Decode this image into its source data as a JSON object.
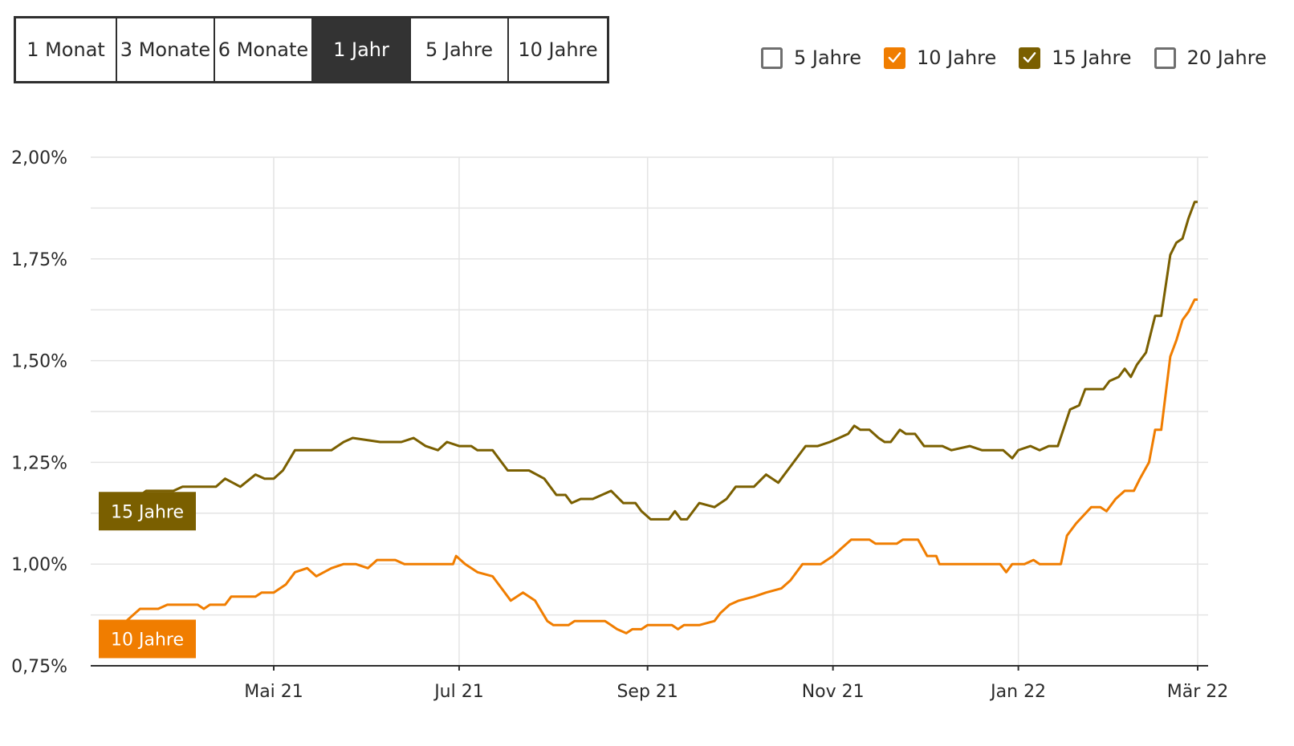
{
  "range_tabs": {
    "items": [
      {
        "label": "1 Monat",
        "active": false
      },
      {
        "label": "3 Monate",
        "active": false
      },
      {
        "label": "6 Monate",
        "active": false
      },
      {
        "label": "1 Jahr",
        "active": true
      },
      {
        "label": "5 Jahre",
        "active": false
      },
      {
        "label": "10 Jahre",
        "active": false
      }
    ]
  },
  "legend": {
    "items": [
      {
        "label": "5 Jahre",
        "checked": false,
        "color": "#6f6f6f"
      },
      {
        "label": "10 Jahre",
        "checked": true,
        "color": "#f07d00"
      },
      {
        "label": "15 Jahre",
        "checked": true,
        "color": "#7a5f00"
      },
      {
        "label": "20 Jahre",
        "checked": false,
        "color": "#6f6f6f"
      }
    ]
  },
  "chart_data": {
    "type": "line",
    "title": "",
    "xlabel": "",
    "ylabel": "",
    "ylim": [
      0.75,
      2.0
    ],
    "xlim": [
      "2021-03-10",
      "2022-03-07"
    ],
    "grid": true,
    "y_ticks": [
      0.75,
      1.0,
      1.25,
      1.5,
      1.75,
      2.0
    ],
    "y_tick_labels": [
      "0,75%",
      "1,00%",
      "1,25%",
      "1,50%",
      "1,75%",
      "2,00%"
    ],
    "x_ticks": [
      {
        "date": "2021-05-01",
        "label": "Mai 21"
      },
      {
        "date": "2021-07-01",
        "label": "Jul 21"
      },
      {
        "date": "2021-09-01",
        "label": "Sep 21"
      },
      {
        "date": "2021-11-01",
        "label": "Nov 21"
      },
      {
        "date": "2022-01-01",
        "label": "Jan 22"
      },
      {
        "date": "2022-03-01",
        "label": "Mär 22"
      }
    ],
    "series": [
      {
        "name": "15 Jahre",
        "color": "#7a5f00",
        "points": [
          [
            "2021-03-10",
            1.13
          ],
          [
            "2021-03-13",
            1.14
          ],
          [
            "2021-03-20",
            1.18
          ],
          [
            "2021-03-29",
            1.18
          ],
          [
            "2021-04-01",
            1.19
          ],
          [
            "2021-04-12",
            1.19
          ],
          [
            "2021-04-15",
            1.21
          ],
          [
            "2021-04-20",
            1.19
          ],
          [
            "2021-04-25",
            1.22
          ],
          [
            "2021-04-28",
            1.21
          ],
          [
            "2021-05-01",
            1.21
          ],
          [
            "2021-05-04",
            1.23
          ],
          [
            "2021-05-08",
            1.28
          ],
          [
            "2021-05-20",
            1.28
          ],
          [
            "2021-05-24",
            1.3
          ],
          [
            "2021-05-27",
            1.31
          ],
          [
            "2021-06-05",
            1.3
          ],
          [
            "2021-06-12",
            1.3
          ],
          [
            "2021-06-16",
            1.31
          ],
          [
            "2021-06-20",
            1.29
          ],
          [
            "2021-06-24",
            1.28
          ],
          [
            "2021-06-27",
            1.3
          ],
          [
            "2021-07-01",
            1.29
          ],
          [
            "2021-07-05",
            1.29
          ],
          [
            "2021-07-07",
            1.28
          ],
          [
            "2021-07-12",
            1.28
          ],
          [
            "2021-07-17",
            1.23
          ],
          [
            "2021-07-24",
            1.23
          ],
          [
            "2021-07-29",
            1.21
          ],
          [
            "2021-08-02",
            1.17
          ],
          [
            "2021-08-05",
            1.17
          ],
          [
            "2021-08-07",
            1.15
          ],
          [
            "2021-08-10",
            1.16
          ],
          [
            "2021-08-14",
            1.16
          ],
          [
            "2021-08-20",
            1.18
          ],
          [
            "2021-08-24",
            1.15
          ],
          [
            "2021-08-28",
            1.15
          ],
          [
            "2021-08-30",
            1.13
          ],
          [
            "2021-09-02",
            1.11
          ],
          [
            "2021-09-08",
            1.11
          ],
          [
            "2021-09-10",
            1.13
          ],
          [
            "2021-09-12",
            1.11
          ],
          [
            "2021-09-14",
            1.11
          ],
          [
            "2021-09-18",
            1.15
          ],
          [
            "2021-09-23",
            1.14
          ],
          [
            "2021-09-27",
            1.16
          ],
          [
            "2021-09-30",
            1.19
          ],
          [
            "2021-10-06",
            1.19
          ],
          [
            "2021-10-10",
            1.22
          ],
          [
            "2021-10-14",
            1.2
          ],
          [
            "2021-10-18",
            1.24
          ],
          [
            "2021-10-23",
            1.29
          ],
          [
            "2021-10-27",
            1.29
          ],
          [
            "2021-10-31",
            1.3
          ],
          [
            "2021-11-03",
            1.31
          ],
          [
            "2021-11-06",
            1.32
          ],
          [
            "2021-11-08",
            1.34
          ],
          [
            "2021-11-10",
            1.33
          ],
          [
            "2021-11-13",
            1.33
          ],
          [
            "2021-11-16",
            1.31
          ],
          [
            "2021-11-18",
            1.3
          ],
          [
            "2021-11-20",
            1.3
          ],
          [
            "2021-11-23",
            1.33
          ],
          [
            "2021-11-25",
            1.32
          ],
          [
            "2021-11-28",
            1.32
          ],
          [
            "2021-12-01",
            1.29
          ],
          [
            "2021-12-07",
            1.29
          ],
          [
            "2021-12-10",
            1.28
          ],
          [
            "2021-12-16",
            1.29
          ],
          [
            "2021-12-20",
            1.28
          ],
          [
            "2021-12-27",
            1.28
          ],
          [
            "2021-12-30",
            1.26
          ],
          [
            "2022-01-01",
            1.28
          ],
          [
            "2022-01-05",
            1.29
          ],
          [
            "2022-01-08",
            1.28
          ],
          [
            "2022-01-11",
            1.29
          ],
          [
            "2022-01-14",
            1.29
          ],
          [
            "2022-01-18",
            1.38
          ],
          [
            "2022-01-21",
            1.39
          ],
          [
            "2022-01-23",
            1.43
          ],
          [
            "2022-01-29",
            1.43
          ],
          [
            "2022-01-31",
            1.45
          ],
          [
            "2022-02-03",
            1.46
          ],
          [
            "2022-02-05",
            1.48
          ],
          [
            "2022-02-07",
            1.46
          ],
          [
            "2022-02-09",
            1.49
          ],
          [
            "2022-02-12",
            1.52
          ],
          [
            "2022-02-15",
            1.61
          ],
          [
            "2022-02-17",
            1.61
          ],
          [
            "2022-02-20",
            1.76
          ],
          [
            "2022-02-22",
            1.79
          ],
          [
            "2022-02-24",
            1.8
          ],
          [
            "2022-02-26",
            1.85
          ],
          [
            "2022-02-28",
            1.89
          ],
          [
            "2022-03-01",
            1.89
          ]
        ]
      },
      {
        "name": "10 Jahre",
        "color": "#f07d00",
        "points": [
          [
            "2021-03-10",
            0.82
          ],
          [
            "2021-03-12",
            0.85
          ],
          [
            "2021-03-18",
            0.89
          ],
          [
            "2021-03-24",
            0.89
          ],
          [
            "2021-03-27",
            0.9
          ],
          [
            "2021-04-06",
            0.9
          ],
          [
            "2021-04-08",
            0.89
          ],
          [
            "2021-04-10",
            0.9
          ],
          [
            "2021-04-15",
            0.9
          ],
          [
            "2021-04-17",
            0.92
          ],
          [
            "2021-04-25",
            0.92
          ],
          [
            "2021-04-27",
            0.93
          ],
          [
            "2021-05-01",
            0.93
          ],
          [
            "2021-05-05",
            0.95
          ],
          [
            "2021-05-08",
            0.98
          ],
          [
            "2021-05-12",
            0.99
          ],
          [
            "2021-05-15",
            0.97
          ],
          [
            "2021-05-20",
            0.99
          ],
          [
            "2021-05-24",
            1.0
          ],
          [
            "2021-05-28",
            1.0
          ],
          [
            "2021-06-01",
            0.99
          ],
          [
            "2021-06-04",
            1.01
          ],
          [
            "2021-06-10",
            1.01
          ],
          [
            "2021-06-13",
            1.0
          ],
          [
            "2021-06-24",
            1.0
          ],
          [
            "2021-06-29",
            1.0
          ],
          [
            "2021-06-30",
            1.02
          ],
          [
            "2021-07-03",
            1.0
          ],
          [
            "2021-07-07",
            0.98
          ],
          [
            "2021-07-12",
            0.97
          ],
          [
            "2021-07-15",
            0.94
          ],
          [
            "2021-07-18",
            0.91
          ],
          [
            "2021-07-22",
            0.93
          ],
          [
            "2021-07-26",
            0.91
          ],
          [
            "2021-07-30",
            0.86
          ],
          [
            "2021-08-01",
            0.85
          ],
          [
            "2021-08-06",
            0.85
          ],
          [
            "2021-08-08",
            0.86
          ],
          [
            "2021-08-18",
            0.86
          ],
          [
            "2021-08-22",
            0.84
          ],
          [
            "2021-08-25",
            0.83
          ],
          [
            "2021-08-27",
            0.84
          ],
          [
            "2021-08-30",
            0.84
          ],
          [
            "2021-09-01",
            0.85
          ],
          [
            "2021-09-09",
            0.85
          ],
          [
            "2021-09-11",
            0.84
          ],
          [
            "2021-09-13",
            0.85
          ],
          [
            "2021-09-18",
            0.85
          ],
          [
            "2021-09-23",
            0.86
          ],
          [
            "2021-09-25",
            0.88
          ],
          [
            "2021-09-28",
            0.9
          ],
          [
            "2021-10-01",
            0.91
          ],
          [
            "2021-10-06",
            0.92
          ],
          [
            "2021-10-10",
            0.93
          ],
          [
            "2021-10-15",
            0.94
          ],
          [
            "2021-10-18",
            0.96
          ],
          [
            "2021-10-22",
            1.0
          ],
          [
            "2021-10-28",
            1.0
          ],
          [
            "2021-11-01",
            1.02
          ],
          [
            "2021-11-04",
            1.04
          ],
          [
            "2021-11-07",
            1.06
          ],
          [
            "2021-11-13",
            1.06
          ],
          [
            "2021-11-15",
            1.05
          ],
          [
            "2021-11-22",
            1.05
          ],
          [
            "2021-11-24",
            1.06
          ],
          [
            "2021-11-29",
            1.06
          ],
          [
            "2021-12-02",
            1.02
          ],
          [
            "2021-12-05",
            1.02
          ],
          [
            "2021-12-06",
            1.0
          ],
          [
            "2021-12-20",
            1.0
          ],
          [
            "2021-12-26",
            1.0
          ],
          [
            "2021-12-28",
            0.98
          ],
          [
            "2021-12-30",
            1.0
          ],
          [
            "2022-01-03",
            1.0
          ],
          [
            "2022-01-06",
            1.01
          ],
          [
            "2022-01-08",
            1.0
          ],
          [
            "2022-01-15",
            1.0
          ],
          [
            "2022-01-17",
            1.07
          ],
          [
            "2022-01-20",
            1.1
          ],
          [
            "2022-01-25",
            1.14
          ],
          [
            "2022-01-28",
            1.14
          ],
          [
            "2022-01-30",
            1.13
          ],
          [
            "2022-02-02",
            1.16
          ],
          [
            "2022-02-05",
            1.18
          ],
          [
            "2022-02-08",
            1.18
          ],
          [
            "2022-02-10",
            1.21
          ],
          [
            "2022-02-13",
            1.25
          ],
          [
            "2022-02-15",
            1.33
          ],
          [
            "2022-02-17",
            1.33
          ],
          [
            "2022-02-20",
            1.51
          ],
          [
            "2022-02-22",
            1.55
          ],
          [
            "2022-02-24",
            1.6
          ],
          [
            "2022-02-26",
            1.62
          ],
          [
            "2022-02-28",
            1.65
          ],
          [
            "2022-03-01",
            1.65
          ]
        ]
      }
    ]
  }
}
